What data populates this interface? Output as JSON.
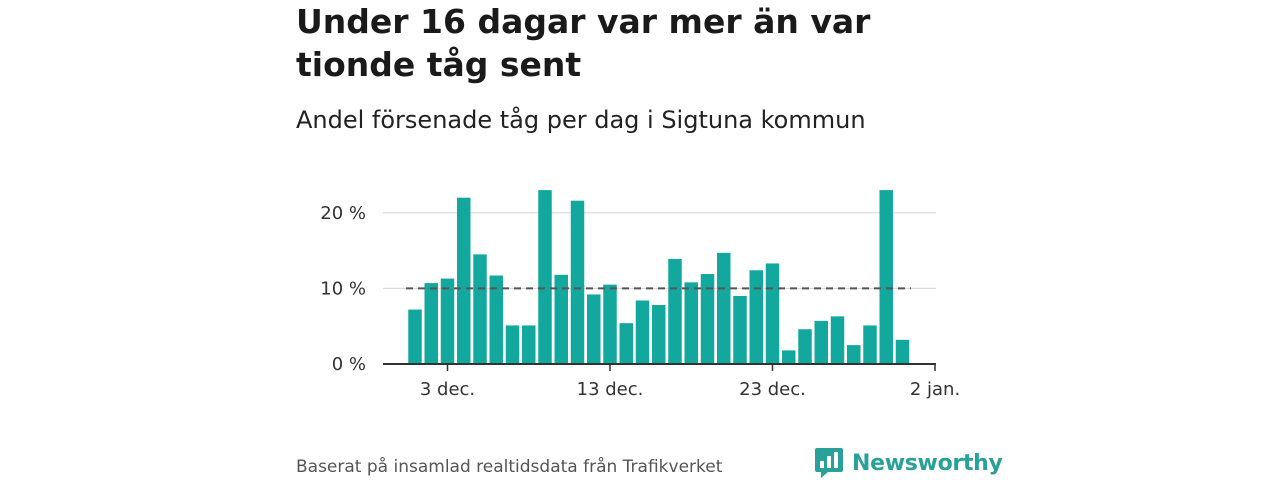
{
  "header": {
    "title": "Under 16 dagar var mer än var tionde tåg sent",
    "subtitle": "Andel försenade tåg per dag i Sigtuna kommun"
  },
  "footer": {
    "source": "Baserat på insamlad realtidsdata från Trafikverket",
    "brand": "Newsworthy"
  },
  "colors": {
    "bar": "#13a89e",
    "reference_line": "#555555",
    "grid": "#d9d9d9",
    "axis": "#333333",
    "brand": "#2aa198"
  },
  "chart_data": {
    "type": "bar",
    "x_start": "2023-12-01",
    "x": [
      "1 dec.",
      "2 dec.",
      "3 dec.",
      "4 dec.",
      "5 dec.",
      "6 dec.",
      "7 dec.",
      "8 dec.",
      "9 dec.",
      "10 dec.",
      "11 dec.",
      "12 dec.",
      "13 dec.",
      "14 dec.",
      "15 dec.",
      "16 dec.",
      "17 dec.",
      "18 dec.",
      "19 dec.",
      "20 dec.",
      "21 dec.",
      "22 dec.",
      "23 dec.",
      "24 dec.",
      "25 dec.",
      "26 dec.",
      "27 dec.",
      "28 dec.",
      "29 dec.",
      "30 dec.",
      "31 dec."
    ],
    "values": [
      7.2,
      10.7,
      11.3,
      22.0,
      14.5,
      11.7,
      5.1,
      5.1,
      23.0,
      11.8,
      21.6,
      9.2,
      10.5,
      5.4,
      8.4,
      7.8,
      13.9,
      10.8,
      11.9,
      14.7,
      9.0,
      12.4,
      13.3,
      1.8,
      4.6,
      5.7,
      6.3,
      2.5,
      5.1,
      23.0,
      3.2
    ],
    "reference_line": 10,
    "ylim": [
      0,
      25
    ],
    "yticks": [
      0,
      10,
      20
    ],
    "ytick_labels": [
      "0 %",
      "10 %",
      "20 %"
    ],
    "xticks": [
      {
        "index": 2,
        "label": "3 dec."
      },
      {
        "index": 12,
        "label": "13 dec."
      },
      {
        "index": 22,
        "label": "23 dec."
      },
      {
        "index": 32,
        "label": "2 jan."
      }
    ],
    "grid": true,
    "legend": "none",
    "xlabel": "",
    "ylabel": ""
  }
}
